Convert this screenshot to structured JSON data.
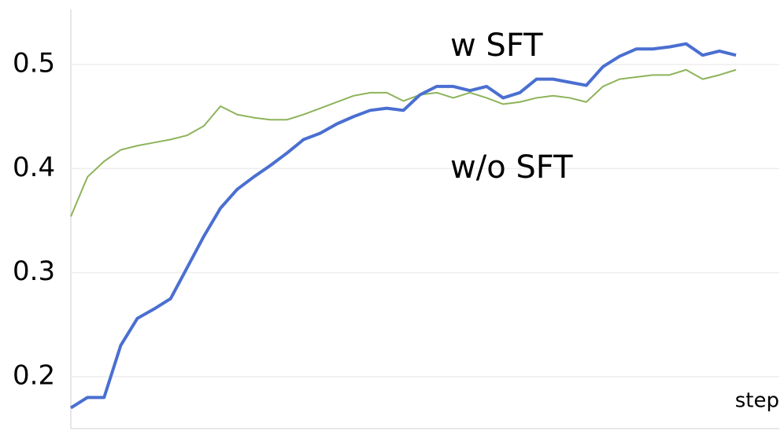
{
  "chart_data": {
    "type": "line",
    "xlabel": "step",
    "categories": [
      null,
      null,
      null,
      null,
      null,
      null,
      null,
      null,
      null,
      null,
      null,
      null,
      null,
      null,
      null,
      null,
      null,
      null,
      null,
      null,
      null,
      null,
      null,
      null,
      null,
      null,
      null,
      null,
      null,
      null,
      null,
      null,
      null,
      null,
      null,
      null,
      null,
      null,
      null,
      null,
      null
    ],
    "series": [
      {
        "name": "w SFT",
        "color": "#4a6fd1",
        "values": [
          0.17,
          0.18,
          0.18,
          0.23,
          0.256,
          0.265,
          0.275,
          0.305,
          0.335,
          0.362,
          0.38,
          0.392,
          0.403,
          0.415,
          0.428,
          0.434,
          0.443,
          0.45,
          0.456,
          0.458,
          0.456,
          0.471,
          0.479,
          0.479,
          0.475,
          0.479,
          0.468,
          0.473,
          0.486,
          0.486,
          0.483,
          0.48,
          0.498,
          0.508,
          0.515,
          0.515,
          0.517,
          0.52,
          0.509,
          0.513,
          0.509
        ]
      },
      {
        "name": "w/o SFT",
        "color": "#8db35a",
        "values": [
          0.354,
          0.392,
          0.407,
          0.418,
          0.422,
          0.425,
          0.428,
          0.432,
          0.441,
          0.46,
          0.452,
          0.449,
          0.447,
          0.447,
          0.452,
          0.458,
          0.464,
          0.47,
          0.473,
          0.473,
          0.465,
          0.471,
          0.473,
          0.468,
          0.473,
          0.468,
          0.462,
          0.464,
          0.468,
          0.47,
          0.468,
          0.464,
          0.479,
          0.486,
          0.488,
          0.49,
          0.49,
          0.495,
          0.486,
          0.49,
          0.495
        ]
      }
    ],
    "ylim": [
      0.15,
      0.55
    ],
    "yticks": [
      0.2,
      0.3,
      0.4,
      0.5
    ],
    "grid": true
  }
}
